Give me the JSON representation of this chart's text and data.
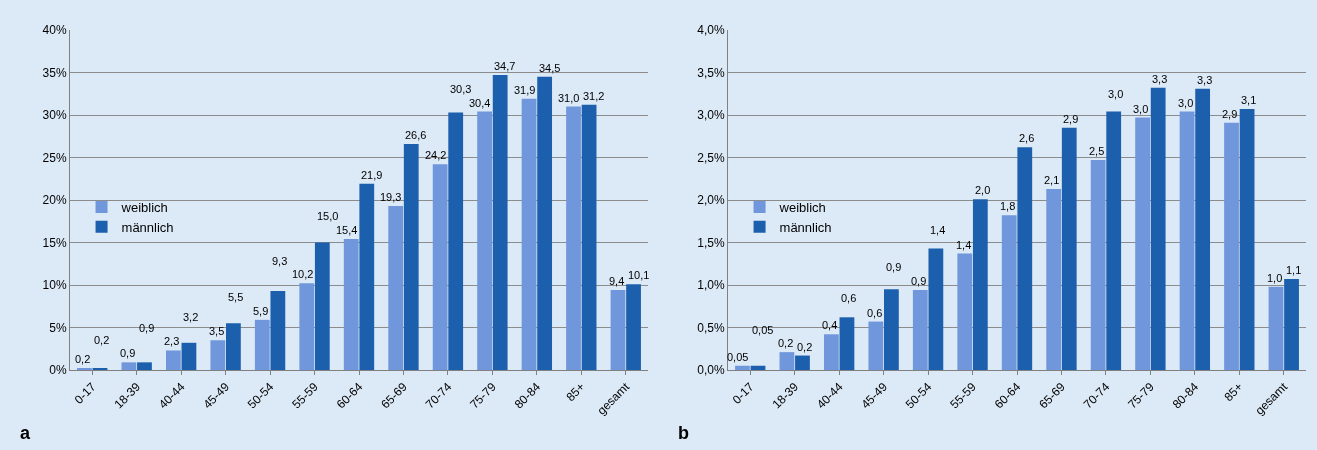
{
  "chart_data": [
    {
      "type": "bar",
      "categories": [
        "0-17",
        "18-39",
        "40-44",
        "45-49",
        "50-54",
        "55-59",
        "60-64",
        "65-69",
        "70-74",
        "75-79",
        "80-84",
        "85+",
        "gesamt"
      ],
      "series": [
        {
          "name": "weiblich",
          "color": "#7097db",
          "values": [
            0.2,
            0.9,
            2.3,
            3.5,
            5.9,
            10.2,
            15.4,
            19.3,
            24.2,
            30.4,
            31.9,
            31.0,
            9.4
          ],
          "value_labels": [
            "0,2",
            "0,9",
            "2,3",
            "3,5",
            "5,9",
            "10,2",
            "15,4",
            "19,3",
            "24,2",
            "30,4",
            "31,9",
            "31,0",
            "9,4"
          ]
        },
        {
          "name": "männlich",
          "color": "#1b5fad",
          "values": [
            0.2,
            0.9,
            3.2,
            5.5,
            9.3,
            15.0,
            21.9,
            26.6,
            30.3,
            34.7,
            34.5,
            31.2,
            10.1
          ],
          "value_labels": [
            "0,2",
            "0,9",
            "3,2",
            "5,5",
            "9,3",
            "15,0",
            "21,9",
            "26,6",
            "30,3",
            "34,7",
            "34,5",
            "31,2",
            "10,1"
          ]
        }
      ],
      "ylim": [
        0,
        40
      ],
      "yticks": [
        {
          "value": 0,
          "label": "0%"
        },
        {
          "value": 5,
          "label": "5%"
        },
        {
          "value": 10,
          "label": "10%"
        },
        {
          "value": 15,
          "label": "15%"
        },
        {
          "value": 20,
          "label": "20%"
        },
        {
          "value": 25,
          "label": "25%"
        },
        {
          "value": 30,
          "label": "30%"
        },
        {
          "value": 35,
          "label": "35%"
        },
        {
          "value": 40,
          "label": "40%"
        }
      ],
      "grid": "y",
      "legend": "left",
      "annotations": [
        "a"
      ]
    },
    {
      "type": "bar",
      "categories": [
        "0-17",
        "18-39",
        "40-44",
        "45-49",
        "50-54",
        "55-59",
        "60-64",
        "65-69",
        "70-74",
        "75-79",
        "80-84",
        "85+",
        "gesamt"
      ],
      "series": [
        {
          "name": "weiblich",
          "color": "#7097db",
          "values": [
            0.05,
            0.21,
            0.42,
            0.57,
            0.94,
            1.37,
            1.82,
            2.13,
            2.47,
            2.97,
            3.04,
            2.91,
            0.98
          ],
          "value_labels": [
            "0,05",
            "0,2",
            "0,4",
            "0,6",
            "0,9",
            "1,4",
            "1,8",
            "2,1",
            "2,5",
            "3,0",
            "3,0",
            "2,9",
            "1,0"
          ]
        },
        {
          "name": "männlich",
          "color": "#1b5fad",
          "values": [
            0.05,
            0.17,
            0.62,
            0.95,
            1.43,
            2.01,
            2.62,
            2.85,
            3.04,
            3.32,
            3.31,
            3.07,
            1.07
          ],
          "value_labels": [
            "0,05",
            "0,2",
            "0,6",
            "0,9",
            "1,4",
            "2,0",
            "2,6",
            "2,9",
            "3,0",
            "3,3",
            "3,3",
            "3,1",
            "1,1"
          ]
        }
      ],
      "ylim": [
        0,
        4
      ],
      "yticks": [
        {
          "value": 0,
          "label": "0,0%"
        },
        {
          "value": 0.5,
          "label": "0,5%"
        },
        {
          "value": 1,
          "label": "1,0%"
        },
        {
          "value": 1.5,
          "label": "1,5%"
        },
        {
          "value": 2,
          "label": "2,0%"
        },
        {
          "value": 2.5,
          "label": "2,5%"
        },
        {
          "value": 3,
          "label": "3,0%"
        },
        {
          "value": 3.5,
          "label": "3,5%"
        },
        {
          "value": 4,
          "label": "4,0%"
        }
      ],
      "grid": "y",
      "legend": "left",
      "annotations": [
        "b"
      ]
    }
  ]
}
